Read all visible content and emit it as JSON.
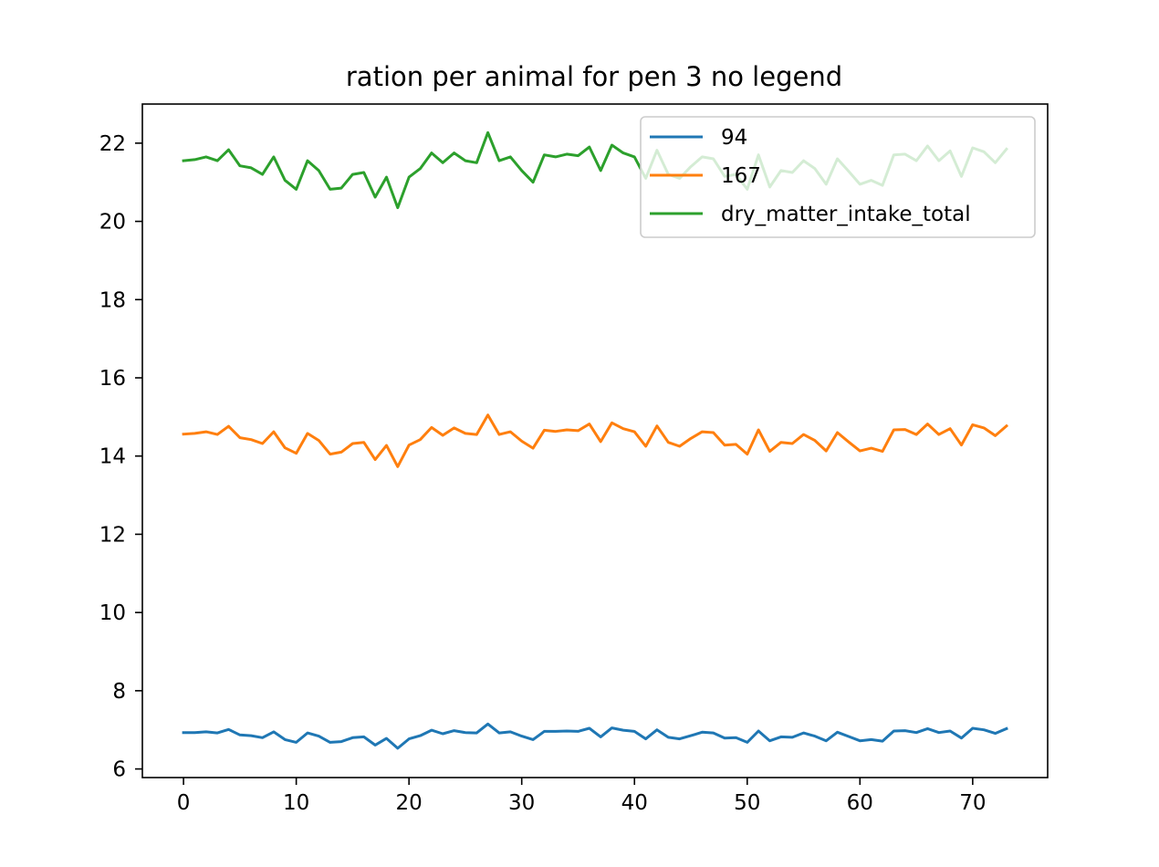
{
  "chart_data": {
    "type": "line",
    "title": "ration per animal for pen 3 no legend",
    "xlabel": "",
    "ylabel": "",
    "xlim": [
      -3.65,
      76.65
    ],
    "ylim": [
      5.78,
      23.0
    ],
    "xticks": [
      0,
      10,
      20,
      30,
      40,
      50,
      60,
      70
    ],
    "yticks": [
      6,
      8,
      10,
      12,
      14,
      16,
      18,
      20,
      22
    ],
    "grid": false,
    "legend": {
      "placement": "top-right"
    },
    "x": [
      0,
      1,
      2,
      3,
      4,
      5,
      6,
      7,
      8,
      9,
      10,
      11,
      12,
      13,
      14,
      15,
      16,
      17,
      18,
      19,
      20,
      21,
      22,
      23,
      24,
      25,
      26,
      27,
      28,
      29,
      30,
      31,
      32,
      33,
      34,
      35,
      36,
      37,
      38,
      39,
      40,
      41,
      42,
      43,
      44,
      45,
      46,
      47,
      48,
      49,
      50,
      51,
      52,
      53,
      54,
      55,
      56,
      57,
      58,
      59,
      60,
      61,
      62,
      63,
      64,
      65,
      66,
      67,
      68,
      69,
      70,
      71,
      72,
      73
    ],
    "series": [
      {
        "name": "94",
        "color": "#1f77b4",
        "values": [
          6.93,
          6.93,
          6.95,
          6.92,
          7.01,
          6.87,
          6.85,
          6.8,
          6.95,
          6.75,
          6.68,
          6.92,
          6.84,
          6.68,
          6.7,
          6.8,
          6.82,
          6.61,
          6.78,
          6.53,
          6.77,
          6.85,
          6.99,
          6.9,
          6.98,
          6.93,
          6.92,
          7.15,
          6.92,
          6.95,
          6.84,
          6.75,
          6.96,
          6.96,
          6.97,
          6.96,
          7.04,
          6.82,
          7.05,
          6.99,
          6.96,
          6.77,
          7.0,
          6.81,
          6.77,
          6.85,
          6.94,
          6.92,
          6.79,
          6.8,
          6.68,
          6.97,
          6.72,
          6.82,
          6.81,
          6.92,
          6.84,
          6.72,
          6.94,
          6.83,
          6.72,
          6.75,
          6.71,
          6.97,
          6.98,
          6.93,
          7.03,
          6.93,
          6.97,
          6.79,
          7.04,
          7.0,
          6.91,
          7.03
        ]
      },
      {
        "name": "167",
        "color": "#ff7f0e",
        "values": [
          14.56,
          14.58,
          14.62,
          14.55,
          14.76,
          14.47,
          14.42,
          14.32,
          14.62,
          14.21,
          14.07,
          14.58,
          14.4,
          14.05,
          14.1,
          14.32,
          14.35,
          13.91,
          14.27,
          13.73,
          14.28,
          14.42,
          14.73,
          14.53,
          14.72,
          14.58,
          14.55,
          15.05,
          14.55,
          14.62,
          14.38,
          14.2,
          14.66,
          14.63,
          14.67,
          14.65,
          14.82,
          14.37,
          14.85,
          14.7,
          14.62,
          14.25,
          14.77,
          14.35,
          14.25,
          14.45,
          14.62,
          14.6,
          14.28,
          14.3,
          14.05,
          14.67,
          14.12,
          14.35,
          14.32,
          14.55,
          14.4,
          14.13,
          14.6,
          14.36,
          14.13,
          14.2,
          14.12,
          14.67,
          14.68,
          14.55,
          14.82,
          14.55,
          14.7,
          14.28,
          14.8,
          14.72,
          14.52,
          14.77
        ]
      },
      {
        "name": "dry_matter_intake_total",
        "color": "#2ca02c",
        "values": [
          21.55,
          21.58,
          21.65,
          21.55,
          21.83,
          21.42,
          21.37,
          21.2,
          21.65,
          21.05,
          20.82,
          21.55,
          21.3,
          20.82,
          20.85,
          21.2,
          21.25,
          20.62,
          21.13,
          20.35,
          21.13,
          21.35,
          21.75,
          21.5,
          21.75,
          21.55,
          21.5,
          22.27,
          21.55,
          21.65,
          21.3,
          21.0,
          21.7,
          21.65,
          21.72,
          21.68,
          21.9,
          21.3,
          21.95,
          21.75,
          21.65,
          21.1,
          21.82,
          21.2,
          21.1,
          21.4,
          21.65,
          21.6,
          21.15,
          21.2,
          20.82,
          21.7,
          20.88,
          21.3,
          21.25,
          21.55,
          21.35,
          20.95,
          21.6,
          21.28,
          20.95,
          21.05,
          20.92,
          21.7,
          21.72,
          21.55,
          21.93,
          21.55,
          21.8,
          21.15,
          21.88,
          21.78,
          21.5,
          21.85
        ]
      }
    ]
  }
}
